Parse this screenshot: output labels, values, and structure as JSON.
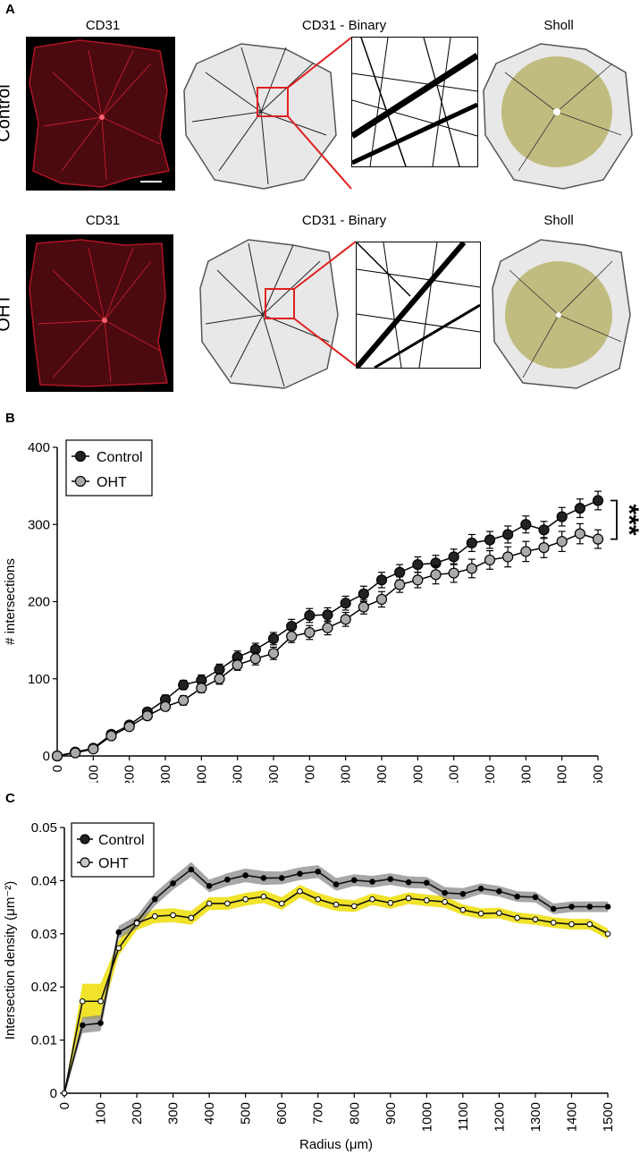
{
  "panel_a": {
    "letter": "A",
    "rows": [
      {
        "label": "Control",
        "titles": [
          "CD31",
          "CD31 - Binary",
          "Sholl"
        ]
      },
      {
        "label": "OHT",
        "titles": [
          "CD31",
          "CD31 - Binary",
          "Sholl"
        ]
      }
    ],
    "colors": {
      "red_channel": "#c8102e",
      "zoom_box": "#e02020",
      "sholl_fill": "#b3ad5c"
    }
  },
  "chart_data": [
    {
      "panel": "B",
      "type": "line",
      "xlabel": "Radius (μm)",
      "ylabel": "# intersections",
      "xlim": [
        0,
        1500
      ],
      "ylim": [
        0,
        400
      ],
      "xticks": [
        0,
        100,
        200,
        300,
        400,
        500,
        600,
        700,
        800,
        900,
        1000,
        1100,
        1200,
        1300,
        1400,
        1500
      ],
      "yticks": [
        0,
        100,
        200,
        300,
        400
      ],
      "legend": "top-left",
      "significance": "***",
      "x": [
        0,
        50,
        100,
        150,
        200,
        250,
        300,
        350,
        400,
        450,
        500,
        550,
        600,
        650,
        700,
        750,
        800,
        850,
        900,
        950,
        1000,
        1050,
        1100,
        1150,
        1200,
        1250,
        1300,
        1350,
        1400,
        1450,
        1500
      ],
      "series": [
        {
          "name": "Control",
          "color": "#222222",
          "values": [
            0,
            5,
            10,
            28,
            40,
            57,
            73,
            92,
            98,
            112,
            128,
            138,
            152,
            168,
            182,
            183,
            198,
            210,
            228,
            238,
            248,
            250,
            258,
            276,
            280,
            287,
            300,
            293,
            310,
            321,
            331
          ],
          "errors": [
            0,
            3,
            4,
            4,
            4,
            5,
            6,
            6,
            7,
            7,
            8,
            8,
            8,
            9,
            9,
            9,
            9,
            10,
            10,
            10,
            10,
            10,
            10,
            11,
            11,
            11,
            11,
            11,
            12,
            12,
            12
          ]
        },
        {
          "name": "OHT",
          "color": "#aaaaaa",
          "values": [
            0,
            4,
            9,
            26,
            38,
            52,
            64,
            72,
            88,
            100,
            118,
            126,
            133,
            155,
            160,
            166,
            177,
            193,
            203,
            222,
            228,
            235,
            237,
            243,
            254,
            258,
            265,
            270,
            278,
            288,
            281
          ],
          "errors": [
            0,
            3,
            4,
            4,
            4,
            5,
            5,
            6,
            6,
            7,
            7,
            8,
            8,
            8,
            9,
            9,
            9,
            9,
            10,
            10,
            10,
            12,
            12,
            12,
            12,
            13,
            13,
            13,
            13,
            13,
            12
          ]
        }
      ]
    },
    {
      "panel": "C",
      "type": "line",
      "xlabel": "Radius (μm)",
      "ylabel": "Intersection density (μm⁻²)",
      "xlim": [
        0,
        1500
      ],
      "ylim": [
        0,
        0.05
      ],
      "xticks": [
        0,
        100,
        200,
        300,
        400,
        500,
        600,
        700,
        800,
        900,
        1000,
        1100,
        1200,
        1300,
        1400,
        1500
      ],
      "yticks": [
        0,
        0.01,
        0.02,
        0.03,
        0.04,
        0.05
      ],
      "legend": "top-left",
      "x": [
        0,
        50,
        100,
        150,
        200,
        250,
        300,
        350,
        400,
        450,
        500,
        550,
        600,
        650,
        700,
        750,
        800,
        850,
        900,
        950,
        1000,
        1050,
        1100,
        1150,
        1200,
        1250,
        1300,
        1350,
        1400,
        1450,
        1500
      ],
      "series": [
        {
          "name": "Control",
          "color": "#111111",
          "band_color": "#8a8a8a",
          "marker": "filled",
          "values": [
            0,
            0.0128,
            0.0132,
            0.0303,
            0.0322,
            0.0365,
            0.0395,
            0.0421,
            0.039,
            0.0402,
            0.041,
            0.0405,
            0.0405,
            0.0413,
            0.0417,
            0.0393,
            0.0401,
            0.0398,
            0.0403,
            0.0397,
            0.0396,
            0.0377,
            0.0375,
            0.0385,
            0.038,
            0.037,
            0.0369,
            0.0347,
            0.0351,
            0.0351,
            0.0351
          ],
          "errors": [
            0,
            0.0015,
            0.0015,
            0.0012,
            0.0012,
            0.0012,
            0.0012,
            0.0014,
            0.0012,
            0.0012,
            0.0013,
            0.0013,
            0.0012,
            0.0012,
            0.0012,
            0.0012,
            0.0011,
            0.0011,
            0.0011,
            0.0011,
            0.0011,
            0.0011,
            0.0011,
            0.001,
            0.001,
            0.001,
            0.001,
            0.001,
            0.001,
            0.001,
            0.001
          ]
        },
        {
          "name": "OHT",
          "color": "#111111",
          "band_color": "#f0e020",
          "marker": "open",
          "values": [
            0,
            0.0173,
            0.0173,
            0.0273,
            0.032,
            0.0333,
            0.0335,
            0.033,
            0.0357,
            0.0357,
            0.0365,
            0.037,
            0.0357,
            0.038,
            0.0365,
            0.0355,
            0.0352,
            0.0365,
            0.0358,
            0.0367,
            0.0363,
            0.036,
            0.0345,
            0.0338,
            0.0339,
            0.033,
            0.0327,
            0.0321,
            0.0318,
            0.0318,
            0.03
          ],
          "errors": [
            0,
            0.0033,
            0.0033,
            0.0014,
            0.0013,
            0.0013,
            0.0013,
            0.0013,
            0.0012,
            0.0012,
            0.0012,
            0.0012,
            0.0012,
            0.0012,
            0.0012,
            0.0012,
            0.0011,
            0.0011,
            0.0011,
            0.0011,
            0.0011,
            0.0011,
            0.001,
            0.001,
            0.001,
            0.001,
            0.001,
            0.001,
            0.001,
            0.001,
            0.001
          ]
        }
      ]
    }
  ]
}
